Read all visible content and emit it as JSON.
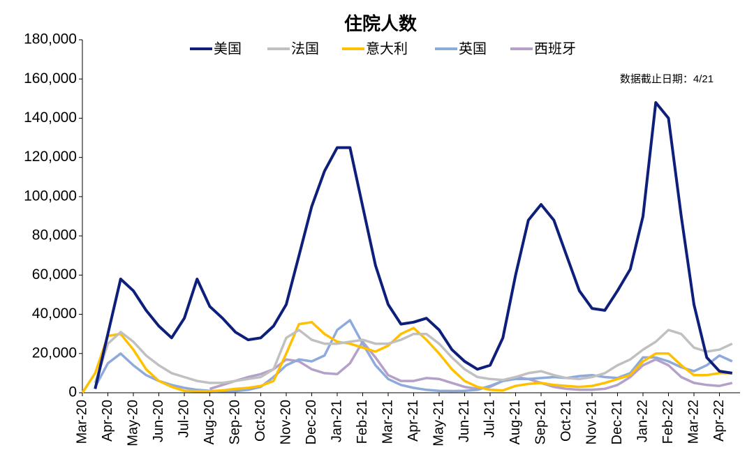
{
  "chart_data": {
    "type": "line",
    "title": "住院人数",
    "annotation": "数据截止日期：4/21",
    "categories": [
      "Mar-20",
      null,
      "Apr-20",
      null,
      "May-20",
      null,
      "Jun-20",
      null,
      "Jul-20",
      null,
      "Aug-20",
      null,
      "Sep-20",
      null,
      "Oct-20",
      null,
      "Nov-20",
      null,
      "Dec-20",
      null,
      "Jan-21",
      null,
      "Feb-21",
      null,
      "Mar-21",
      null,
      "Apr-21",
      null,
      "May-21",
      null,
      "Jun-21",
      null,
      "Jul-21",
      null,
      "Aug-21",
      null,
      "Sep-21",
      null,
      "Oct-21",
      null,
      "Nov-21",
      null,
      "Dec-21",
      null,
      "Jan-22",
      null,
      "Feb-22",
      null,
      "Mar-22",
      null,
      "Apr-22",
      null
    ],
    "series": [
      {
        "name": "美国",
        "color": "#0d1f7a",
        "values": [
          null,
          2000,
          30000,
          58000,
          52000,
          42000,
          34000,
          28000,
          38000,
          58000,
          44000,
          38000,
          31000,
          27000,
          28000,
          34000,
          45000,
          70000,
          95000,
          113000,
          125000,
          125000,
          95000,
          65000,
          45000,
          35000,
          36000,
          38000,
          32000,
          22000,
          16000,
          12000,
          14000,
          28000,
          60000,
          88000,
          96000,
          88000,
          70000,
          52000,
          43000,
          42000,
          52000,
          63000,
          90000,
          148000,
          140000,
          90000,
          45000,
          18000,
          11000,
          10000
        ]
      },
      {
        "name": "法国",
        "color": "#c0c0c0",
        "values": [
          null,
          5000,
          25000,
          31000,
          26000,
          19000,
          14000,
          10000,
          8000,
          6000,
          5000,
          5000,
          6000,
          7000,
          8000,
          12000,
          28000,
          32000,
          27000,
          25000,
          25000,
          26000,
          27000,
          25000,
          25000,
          27000,
          30000,
          30000,
          25000,
          18000,
          12000,
          8000,
          7000,
          6500,
          8000,
          10000,
          11000,
          9000,
          7500,
          7000,
          8000,
          10000,
          14000,
          17000,
          22000,
          26000,
          32000,
          30000,
          23000,
          21000,
          22000,
          25000
        ]
      },
      {
        "name": "意大利",
        "color": "#ffc000",
        "values": [
          0,
          10000,
          29000,
          30000,
          22000,
          12000,
          6000,
          3000,
          1000,
          800,
          800,
          1200,
          2000,
          2500,
          3500,
          6000,
          20000,
          35000,
          36000,
          30000,
          26000,
          25000,
          23000,
          21000,
          24000,
          30000,
          33000,
          27000,
          20000,
          12000,
          6000,
          3000,
          1500,
          1200,
          3500,
          4500,
          5000,
          4000,
          3500,
          3000,
          3500,
          5000,
          7000,
          9000,
          16000,
          20000,
          20000,
          14000,
          9000,
          9000,
          10000,
          10000
        ]
      },
      {
        "name": "英国",
        "color": "#8eaadb",
        "values": [
          null,
          3000,
          15000,
          20000,
          14000,
          9000,
          6000,
          4000,
          2500,
          1500,
          1000,
          800,
          800,
          1500,
          3000,
          8000,
          14000,
          17000,
          16000,
          19000,
          32000,
          37000,
          25000,
          14000,
          7000,
          4000,
          2500,
          1500,
          1000,
          900,
          1000,
          1500,
          3500,
          6000,
          7000,
          7000,
          7500,
          8000,
          7500,
          8500,
          9000,
          8000,
          7500,
          10000,
          18000,
          18000,
          16000,
          13000,
          11000,
          14000,
          19000,
          16000
        ]
      },
      {
        "name": "西班牙",
        "color": "#b4a0c8",
        "values": [
          null,
          null,
          null,
          null,
          null,
          null,
          null,
          null,
          null,
          null,
          2000,
          4000,
          6000,
          8000,
          9500,
          12000,
          17000,
          16000,
          12000,
          10000,
          9500,
          15000,
          26000,
          18000,
          9000,
          6000,
          6000,
          7500,
          7000,
          5000,
          3000,
          2000,
          3000,
          6000,
          8000,
          7000,
          5000,
          3000,
          2000,
          1500,
          1500,
          2000,
          4000,
          8000,
          14000,
          17000,
          14000,
          8000,
          5000,
          4000,
          3500,
          5000
        ]
      }
    ],
    "ylim": [
      0,
      180000
    ],
    "yticks": [
      0,
      {
        "value": 20000,
        "label": "20,000"
      },
      {
        "value": 40000,
        "label": "40,000"
      },
      {
        "value": 60000,
        "label": "60,000"
      },
      {
        "value": 80000,
        "label": "80,000"
      },
      {
        "value": 100000,
        "label": "100,000"
      },
      {
        "value": 120000,
        "label": "120,000"
      },
      {
        "value": 140000,
        "label": "140,000"
      },
      {
        "value": 160000,
        "label": "160,000"
      },
      {
        "value": 180000,
        "label": "180,000"
      }
    ],
    "grid": false,
    "legend": "top"
  }
}
